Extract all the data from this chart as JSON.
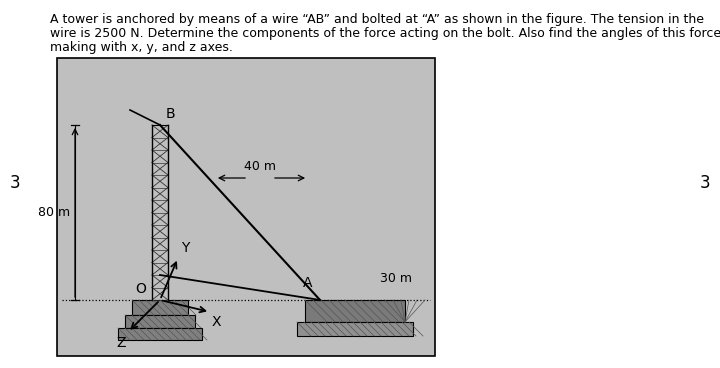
{
  "title_line1": "A tower is anchored by means of a wire “AB” and bolted at “A” as shown in the figure. The tension in the",
  "title_line2": "wire is 2500 N. Determine the components of the force acting on the bolt. Also find the angles of this force",
  "title_line3": "making with x, y, and z axes.",
  "background_color": "#ffffff",
  "figure_bg": "#c0bfbf",
  "border_number": "3",
  "label_80m": "80 m",
  "label_40m": "40 m",
  "label_30m": "30 m",
  "label_A": "A",
  "label_B": "B",
  "label_O": "O",
  "label_X": "X",
  "label_Y": "Y",
  "label_Z": "Z",
  "line_color": "#000000",
  "tower_color": "#333333",
  "hatch_color": "#555555",
  "ground_color": "#888888"
}
